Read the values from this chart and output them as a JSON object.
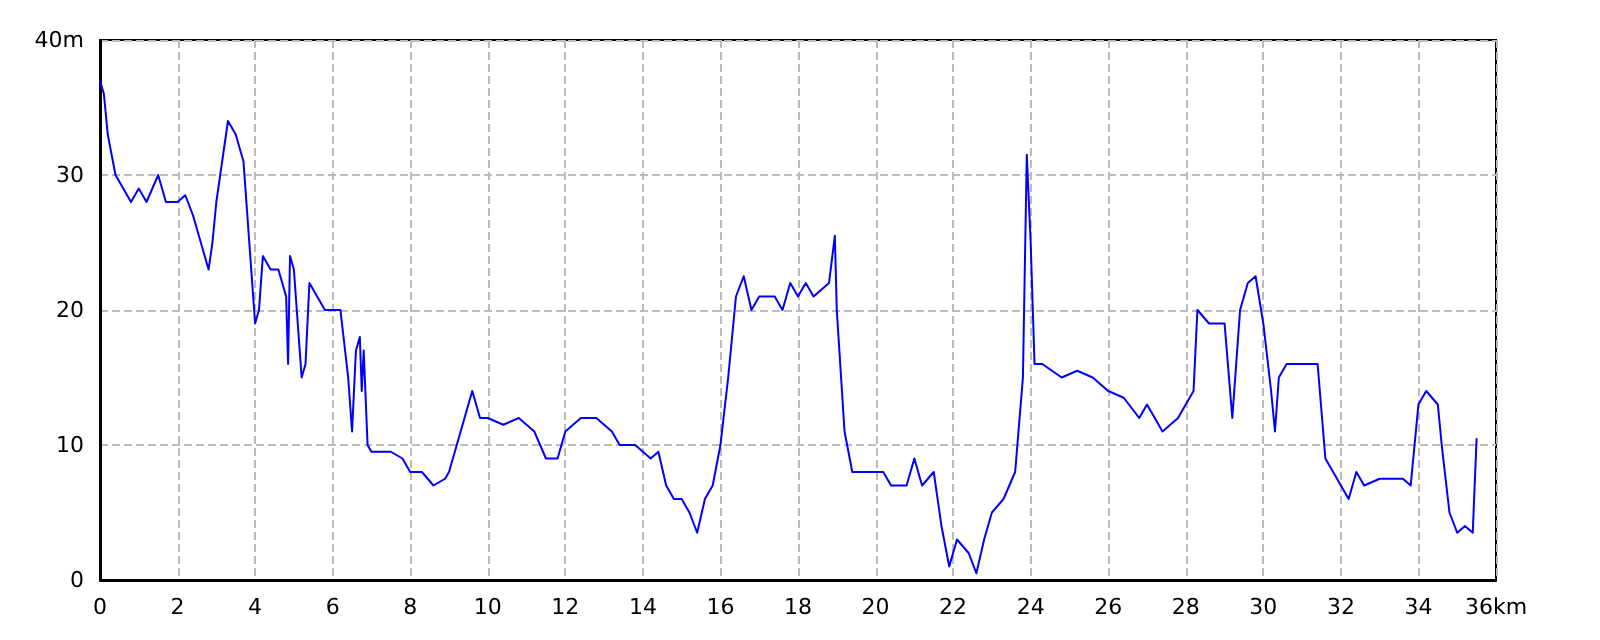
{
  "chart_data": {
    "type": "line",
    "x": [
      0,
      0.1,
      0.2,
      0.4,
      0.6,
      0.8,
      1.0,
      1.2,
      1.5,
      1.7,
      2.0,
      2.2,
      2.4,
      2.6,
      2.8,
      2.9,
      3.0,
      3.2,
      3.3,
      3.5,
      3.7,
      3.8,
      4.0,
      4.1,
      4.2,
      4.4,
      4.6,
      4.8,
      4.85,
      4.9,
      5.0,
      5.2,
      5.3,
      5.4,
      5.6,
      5.8,
      6.0,
      6.2,
      6.4,
      6.5,
      6.6,
      6.7,
      6.75,
      6.8,
      6.9,
      7.0,
      7.5,
      7.8,
      8.0,
      8.3,
      8.6,
      8.9,
      9.0,
      9.2,
      9.4,
      9.6,
      9.8,
      10.0,
      10.4,
      10.8,
      11.2,
      11.5,
      11.8,
      12.0,
      12.4,
      12.8,
      13.2,
      13.4,
      13.8,
      14.2,
      14.4,
      14.6,
      14.8,
      15.0,
      15.2,
      15.4,
      15.6,
      15.8,
      16.0,
      16.2,
      16.4,
      16.6,
      16.8,
      17.0,
      17.4,
      17.6,
      17.8,
      18.0,
      18.2,
      18.4,
      18.8,
      18.95,
      19.0,
      19.2,
      19.4,
      19.6,
      20.0,
      20.2,
      20.4,
      20.8,
      21.0,
      21.2,
      21.5,
      21.7,
      21.9,
      22.1,
      22.4,
      22.6,
      22.8,
      23.0,
      23.3,
      23.6,
      23.8,
      23.9,
      24.0,
      24.1,
      24.3,
      24.8,
      25.2,
      25.6,
      26.0,
      26.4,
      26.8,
      27.0,
      27.4,
      27.8,
      28.2,
      28.3,
      28.6,
      29.0,
      29.2,
      29.4,
      29.6,
      29.8,
      30.0,
      30.2,
      30.3,
      30.4,
      30.6,
      31.0,
      31.4,
      31.6,
      31.8,
      32.0,
      32.2,
      32.4,
      32.6,
      33.0,
      33.6,
      33.8,
      34.0,
      34.2,
      34.5,
      34.6,
      34.8,
      35.0,
      35.2,
      35.4,
      35.5
    ],
    "series": [
      {
        "color": "#0000ff",
        "values": [
          37,
          36,
          33,
          30,
          29,
          28,
          29,
          28,
          30,
          28,
          28,
          28.5,
          27,
          25,
          23,
          25,
          28,
          32,
          34,
          33,
          31,
          27,
          19,
          20,
          24,
          23,
          23,
          21,
          16,
          24,
          23,
          15,
          16,
          22,
          21,
          20,
          20,
          20,
          15,
          11,
          17,
          18,
          14,
          17,
          10,
          9.5,
          9.5,
          9,
          8,
          8,
          7,
          7.5,
          8,
          10,
          12,
          14,
          12,
          12,
          11.5,
          12,
          11,
          9,
          9,
          11,
          12,
          12,
          11,
          10,
          10,
          9,
          9.5,
          7,
          6,
          6,
          5,
          3.5,
          6,
          7,
          10,
          15,
          21,
          22.5,
          20,
          21,
          21,
          20,
          22,
          21,
          22,
          21,
          22,
          25.5,
          20,
          11,
          8,
          8,
          8,
          8,
          7,
          7,
          9,
          7,
          8,
          4,
          1,
          3,
          2,
          0.5,
          3,
          5,
          6,
          8,
          15,
          31.5,
          25,
          16,
          16,
          15,
          15.5,
          15,
          14,
          13.5,
          12,
          13,
          11,
          12,
          14,
          20,
          19,
          19,
          12,
          20,
          22,
          22.5,
          19,
          14,
          11,
          15,
          16,
          16,
          16,
          9,
          8,
          7,
          6,
          8,
          7,
          7.5,
          7.5,
          7,
          13,
          14,
          13,
          10,
          5,
          3.5,
          4,
          3.5,
          10.5
        ]
      }
    ],
    "xlim": [
      0,
      36
    ],
    "xticks": [
      0,
      2,
      4,
      6,
      8,
      10,
      12,
      14,
      16,
      18,
      20,
      22,
      24,
      26,
      28,
      30,
      32,
      34,
      {
        "value": 36,
        "label": "36km"
      }
    ],
    "ylim": [
      0,
      40
    ],
    "yticks": [
      0,
      10,
      20,
      30,
      {
        "value": 40,
        "label": "40m"
      }
    ],
    "grid": true,
    "marker": "none",
    "line_style": "solid"
  }
}
